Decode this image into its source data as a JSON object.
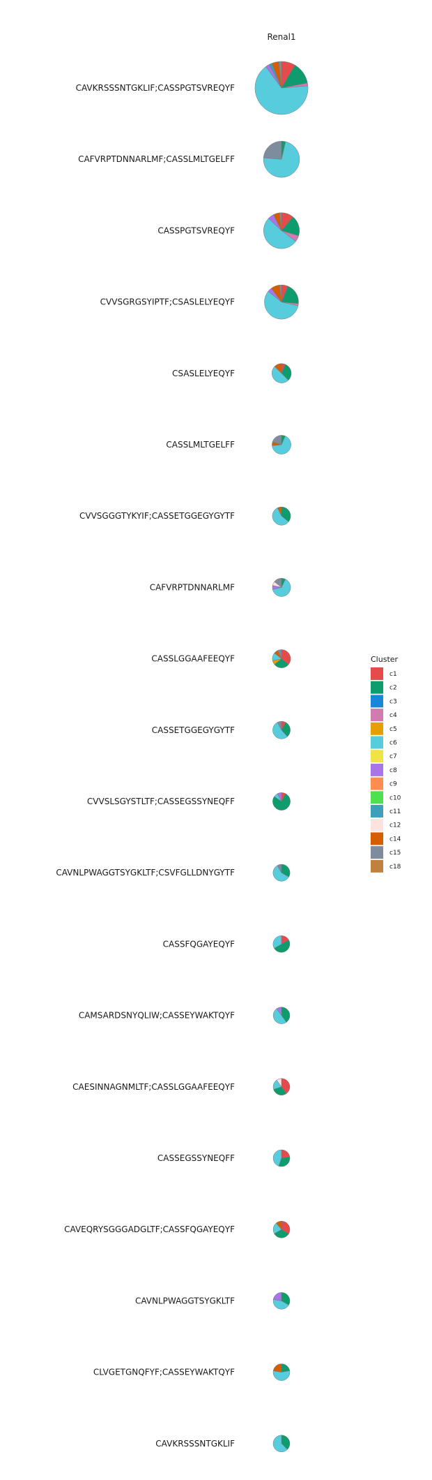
{
  "chart_data": {
    "type": "pie",
    "facet_title": "Renal1",
    "legend_title": "Cluster",
    "legend_placement": "right",
    "grid": false,
    "clusters": [
      {
        "name": "c1",
        "color": "#E64B4B"
      },
      {
        "name": "c2",
        "color": "#0E9B6E"
      },
      {
        "name": "c3",
        "color": "#1A86D8"
      },
      {
        "name": "c4",
        "color": "#D07CB0"
      },
      {
        "name": "c5",
        "color": "#E69F00"
      },
      {
        "name": "c6",
        "color": "#56CCDC"
      },
      {
        "name": "c7",
        "color": "#F0E442"
      },
      {
        "name": "c8",
        "color": "#A875E8"
      },
      {
        "name": "c9",
        "color": "#FF8C50"
      },
      {
        "name": "c10",
        "color": "#4FE04F"
      },
      {
        "name": "c11",
        "color": "#3D9FBA"
      },
      {
        "name": "c12",
        "color": "#FCE3DF"
      },
      {
        "name": "c14",
        "color": "#D55E00"
      },
      {
        "name": "c15",
        "color": "#7F8C9E"
      },
      {
        "name": "c18",
        "color": "#C08040"
      }
    ],
    "rows": [
      {
        "label": "CAVKRSSSNTGKLIF;CASSPGTSVREQYF",
        "total": 118,
        "slices": {
          "c1": 10,
          "c2": 16,
          "c4": 2,
          "c6": 78,
          "c8": 3,
          "c11": 2,
          "c14": 5,
          "c15": 2
        }
      },
      {
        "label": "CAFVRPTDNNARLMF;CASSLMLTGELFF",
        "total": 55,
        "slices": {
          "c2": 2,
          "c6": 40,
          "c15": 13
        }
      },
      {
        "label": "CASSPGTSVREQYF",
        "total": 54,
        "slices": {
          "c1": 6,
          "c2": 10,
          "c4": 3,
          "c6": 28,
          "c8": 3,
          "c14": 3,
          "c15": 1
        }
      },
      {
        "label": "CVVSGRGSYIPTF;CSASLELYEQYF",
        "total": 49,
        "slices": {
          "c1": 3,
          "c2": 10,
          "c4": 1,
          "c6": 28,
          "c8": 2,
          "c14": 4,
          "c15": 1
        }
      },
      {
        "label": "CSASLELYEQYF",
        "total": 16,
        "slices": {
          "c1": 1,
          "c2": 5,
          "c6": 8,
          "c14": 2
        }
      },
      {
        "label": "CASSLMLTGELFF",
        "total": 15,
        "slices": {
          "c2": 1,
          "c6": 10,
          "c14": 1,
          "c15": 3
        }
      },
      {
        "label": "CVVSGGGTYKYIF;CASSETGGEGYGYTF",
        "total": 14,
        "slices": {
          "c2": 5,
          "c6": 8,
          "c14": 1
        }
      },
      {
        "label": "CAFVRPTDNNARLMF",
        "total": 14,
        "slices": {
          "c2": 1,
          "c6": 9,
          "c8": 1,
          "c12": 1,
          "c15": 2
        }
      },
      {
        "label": "CASSLGGAAFEEQYF",
        "total": 14,
        "slices": {
          "c1": 5,
          "c2": 4,
          "c5": 1,
          "c6": 2,
          "c14": 1,
          "c15": 1
        }
      },
      {
        "label": "CASSETGGEGYGYTF",
        "total": 13,
        "slices": {
          "c1": 1,
          "c2": 4,
          "c6": 7,
          "c15": 1
        }
      },
      {
        "label": "CVVSLSGYSTLTF;CASSEGSSYNEQFF",
        "total": 13,
        "slices": {
          "c1": 1,
          "c2": 10,
          "c6": 1,
          "c8": 1
        }
      },
      {
        "label": "CAVNLPWAGGTSYGKLTF;CSVFGLLDNYGYTF",
        "total": 12,
        "slices": {
          "c2": 4,
          "c6": 7,
          "c15": 1
        }
      },
      {
        "label": "CASSFQGAYEQYF",
        "total": 12,
        "slices": {
          "c1": 2,
          "c2": 6,
          "c6": 4
        }
      },
      {
        "label": "CAMSARDSNYQLIW;CASSEYWAKTQYF",
        "total": 10,
        "slices": {
          "c2": 4,
          "c6": 5,
          "c8": 1
        }
      },
      {
        "label": "CAESINNAGNMLTF;CASSLGGAAFEEQYF",
        "total": 10,
        "slices": {
          "c1": 4,
          "c2": 3,
          "c6": 2,
          "c12": 1
        }
      },
      {
        "label": "CASSEGSSYNEQFF",
        "total": 9,
        "slices": {
          "c1": 2,
          "c2": 3,
          "c6": 4
        }
      },
      {
        "label": "CAVEQRYSGGGADGLTF;CASSFQGAYEQYF",
        "total": 9,
        "slices": {
          "c1": 3,
          "c2": 3,
          "c6": 2,
          "c14": 1
        }
      },
      {
        "label": "CAVNLPWAGGTSYGKLTF",
        "total": 9,
        "slices": {
          "c2": 3,
          "c6": 4,
          "c8": 2
        }
      },
      {
        "label": "CLVGETGNQFYF;CASSEYWAKTQYF",
        "total": 9,
        "slices": {
          "c2": 2,
          "c6": 5,
          "c14": 2
        }
      },
      {
        "label": "CAVKRSSSNTGKLIF",
        "total": 8,
        "slices": {
          "c2": 3,
          "c6": 5
        }
      }
    ]
  }
}
